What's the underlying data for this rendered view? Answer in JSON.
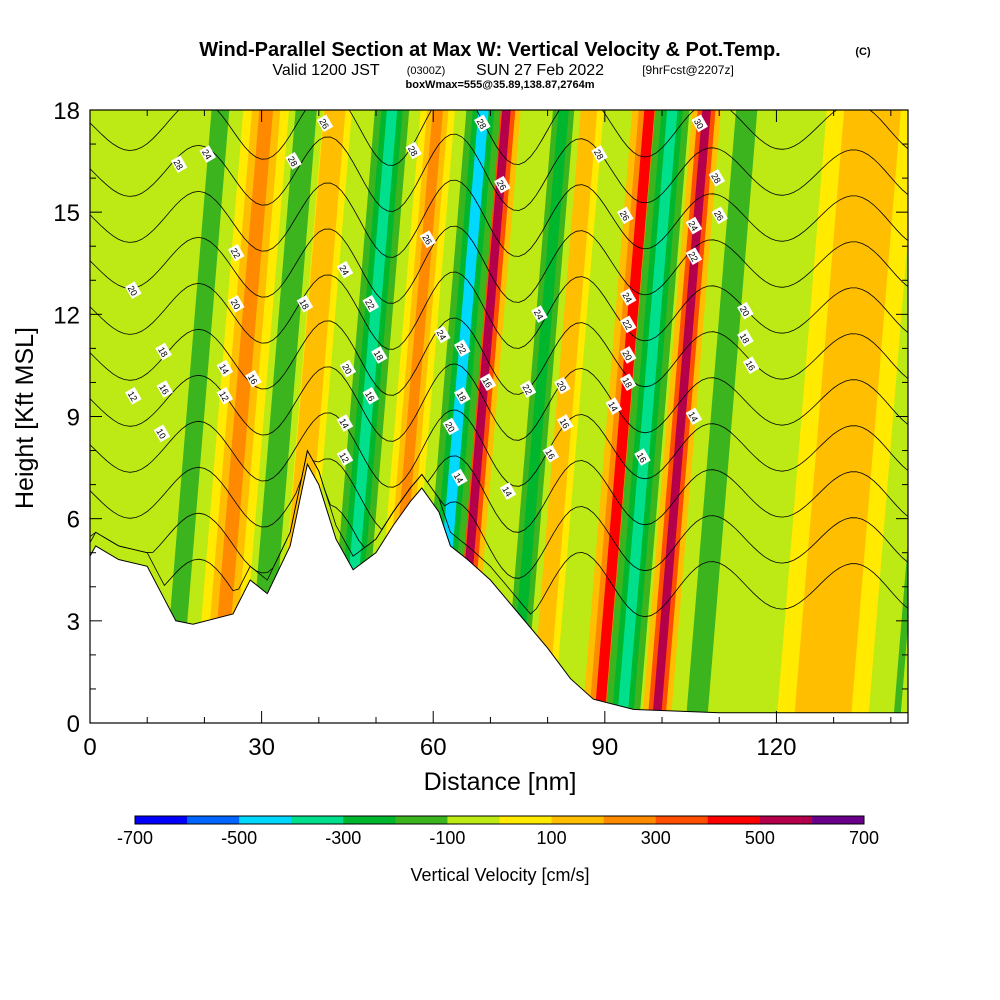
{
  "title": {
    "main": "Wind-Parallel Section at Max W: Vertical Velocity & Pot.Temp.",
    "copyright": "(C)",
    "valid_prefix": "Valid 1200 JST",
    "valid_utc": "(0300Z)",
    "valid_date": "SUN 27 Feb 2022",
    "forecast": "[9hrFcst@2207z]",
    "box": "boxWmax=555@35.89,138.87,2764m"
  },
  "chart_data": {
    "type": "heatmap",
    "xlabel": "Distance [nm]",
    "ylabel": "Height [Kft MSL]",
    "xlim": [
      0,
      143
    ],
    "ylim": [
      0,
      18
    ],
    "x_ticks": [
      0,
      30,
      60,
      90,
      120
    ],
    "y_ticks": [
      0,
      3,
      6,
      9,
      12,
      15,
      18
    ],
    "colorbar": {
      "label": "Vertical Velocity [cm/s]",
      "tick_labels": [
        "-700",
        "-500",
        "-300",
        "-100",
        "100",
        "300",
        "500",
        "700"
      ],
      "bounds": [
        -700,
        -600,
        -500,
        -400,
        -300,
        -200,
        -100,
        0,
        100,
        200,
        300,
        400,
        500,
        600,
        700
      ],
      "colors": [
        "#0000ff",
        "#0066ff",
        "#00d8ff",
        "#00e08c",
        "#00b62c",
        "#3cb41e",
        "#bdea14",
        "#ffea00",
        "#ffbe00",
        "#ff8a00",
        "#ff4e00",
        "#ff0000",
        "#b4004a",
        "#6a008a"
      ]
    },
    "background_color": "#bdea14",
    "terrain": [
      [
        0,
        4.9
      ],
      [
        1,
        5.2
      ],
      [
        5,
        4.8
      ],
      [
        10,
        4.6
      ],
      [
        15,
        3.0
      ],
      [
        18,
        2.9
      ],
      [
        25,
        3.2
      ],
      [
        28,
        4.2
      ],
      [
        31,
        3.8
      ],
      [
        35,
        5.2
      ],
      [
        38,
        7.6
      ],
      [
        40,
        7.0
      ],
      [
        43,
        5.4
      ],
      [
        46,
        4.5
      ],
      [
        50,
        5.0
      ],
      [
        53,
        5.8
      ],
      [
        56,
        6.5
      ],
      [
        58,
        6.9
      ],
      [
        61,
        6.2
      ],
      [
        63,
        5.2
      ],
      [
        66,
        4.8
      ],
      [
        70,
        4.2
      ],
      [
        75,
        3.2
      ],
      [
        80,
        2.2
      ],
      [
        84,
        1.3
      ],
      [
        88,
        0.7
      ],
      [
        95,
        0.4
      ],
      [
        110,
        0.3
      ],
      [
        135,
        0.3
      ],
      [
        143,
        0.3
      ]
    ],
    "updraft_bands": [
      {
        "base_x": 22,
        "width": 4,
        "w": 210
      },
      {
        "base_x": 34,
        "width": 3,
        "w": 180
      },
      {
        "base_x": 52,
        "width": 3,
        "w": 220
      },
      {
        "base_x": 64,
        "width": 2.5,
        "w": 560
      },
      {
        "base_x": 78,
        "width": 3,
        "w": 150
      },
      {
        "base_x": 89,
        "width": 3,
        "w": 420
      },
      {
        "base_x": 99,
        "width": 2.5,
        "w": 520
      },
      {
        "base_x": 128,
        "width": 8,
        "w": 160
      }
    ],
    "downdraft_bands": [
      {
        "base_x": 14,
        "width": 2.5,
        "w": -150
      },
      {
        "base_x": 29,
        "width": 3,
        "w": -180
      },
      {
        "base_x": 44,
        "width": 3,
        "w": -380
      },
      {
        "base_x": 60,
        "width": 3,
        "w": -420
      },
      {
        "base_x": 74,
        "width": 3,
        "w": -250
      },
      {
        "base_x": 93,
        "width": 3,
        "w": -330
      },
      {
        "base_x": 106,
        "width": 3,
        "w": -200
      },
      {
        "base_x": 141,
        "width": 2,
        "w": -120
      }
    ],
    "theta_levels": [
      10,
      12,
      14,
      16,
      18,
      20,
      22,
      24,
      26,
      28,
      30
    ],
    "theta_labels": [
      {
        "text": "10",
        "x": 12.5,
        "y": 8.5
      },
      {
        "text": "12",
        "x": 7.5,
        "y": 9.6
      },
      {
        "text": "16",
        "x": 13.0,
        "y": 9.8
      },
      {
        "text": "18",
        "x": 12.8,
        "y": 10.9
      },
      {
        "text": "20",
        "x": 7.5,
        "y": 12.7
      },
      {
        "text": "28",
        "x": 15.5,
        "y": 16.4
      },
      {
        "text": "24",
        "x": 20.5,
        "y": 16.7
      },
      {
        "text": "22",
        "x": 25.5,
        "y": 13.8
      },
      {
        "text": "20",
        "x": 25.5,
        "y": 12.3
      },
      {
        "text": "14",
        "x": 23.5,
        "y": 10.4
      },
      {
        "text": "12",
        "x": 23.5,
        "y": 9.6
      },
      {
        "text": "16",
        "x": 28.5,
        "y": 10.1
      },
      {
        "text": "28",
        "x": 35.5,
        "y": 16.5
      },
      {
        "text": "26",
        "x": 41.0,
        "y": 17.6
      },
      {
        "text": "18",
        "x": 37.5,
        "y": 12.3
      },
      {
        "text": "24",
        "x": 44.5,
        "y": 13.3
      },
      {
        "text": "22",
        "x": 49.0,
        "y": 12.3
      },
      {
        "text": "20",
        "x": 45.0,
        "y": 10.4
      },
      {
        "text": "18",
        "x": 50.5,
        "y": 10.8
      },
      {
        "text": "16",
        "x": 49.0,
        "y": 9.6
      },
      {
        "text": "14",
        "x": 44.5,
        "y": 8.8
      },
      {
        "text": "12",
        "x": 44.5,
        "y": 7.8
      },
      {
        "text": "28",
        "x": 56.5,
        "y": 16.8
      },
      {
        "text": "26",
        "x": 59.0,
        "y": 14.2
      },
      {
        "text": "24",
        "x": 61.5,
        "y": 11.4
      },
      {
        "text": "22",
        "x": 65.0,
        "y": 11.0
      },
      {
        "text": "18",
        "x": 65.0,
        "y": 9.6
      },
      {
        "text": "20",
        "x": 63.0,
        "y": 8.7
      },
      {
        "text": "14",
        "x": 64.5,
        "y": 7.2
      },
      {
        "text": "16",
        "x": 69.5,
        "y": 10.0
      },
      {
        "text": "28",
        "x": 68.5,
        "y": 17.6
      },
      {
        "text": "26",
        "x": 72.0,
        "y": 15.8
      },
      {
        "text": "22",
        "x": 76.5,
        "y": 9.8
      },
      {
        "text": "24",
        "x": 78.5,
        "y": 12.0
      },
      {
        "text": "20",
        "x": 82.5,
        "y": 9.9
      },
      {
        "text": "16",
        "x": 83.0,
        "y": 8.8
      },
      {
        "text": "16",
        "x": 80.5,
        "y": 7.9
      },
      {
        "text": "14",
        "x": 73.0,
        "y": 6.8
      },
      {
        "text": "28",
        "x": 89.0,
        "y": 16.7
      },
      {
        "text": "26",
        "x": 93.5,
        "y": 14.9
      },
      {
        "text": "24",
        "x": 94.0,
        "y": 12.5
      },
      {
        "text": "22",
        "x": 94.0,
        "y": 11.7
      },
      {
        "text": "20",
        "x": 94.0,
        "y": 10.8
      },
      {
        "text": "18",
        "x": 94.0,
        "y": 10.0
      },
      {
        "text": "14",
        "x": 91.5,
        "y": 9.3
      },
      {
        "text": "16",
        "x": 96.5,
        "y": 7.8
      },
      {
        "text": "30",
        "x": 106.5,
        "y": 17.6
      },
      {
        "text": "28",
        "x": 109.5,
        "y": 16.0
      },
      {
        "text": "26",
        "x": 110.0,
        "y": 14.9
      },
      {
        "text": "24",
        "x": 105.5,
        "y": 14.6
      },
      {
        "text": "22",
        "x": 105.5,
        "y": 13.7
      },
      {
        "text": "20",
        "x": 114.5,
        "y": 12.1
      },
      {
        "text": "18",
        "x": 114.5,
        "y": 11.3
      },
      {
        "text": "16",
        "x": 115.5,
        "y": 10.5
      },
      {
        "text": "14",
        "x": 105.5,
        "y": 9.0
      }
    ]
  }
}
